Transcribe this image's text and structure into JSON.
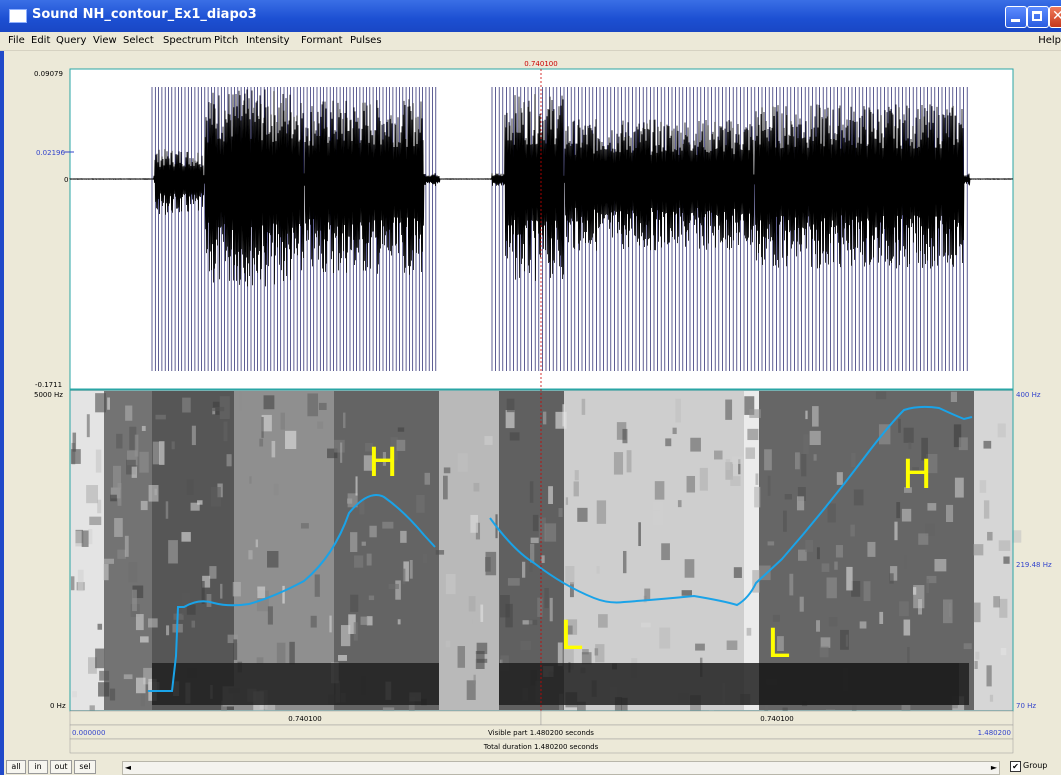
{
  "window": {
    "title": "Sound NH_contour_Ex1_diapo3",
    "buttons": {
      "minimize": "minimize-icon",
      "maximize": "maximize-icon",
      "close": "close-icon",
      "close_glyph": "✕"
    }
  },
  "menu": {
    "items": [
      "File",
      "Edit",
      "Query",
      "View",
      "Select",
      "Spectrum",
      "Pitch",
      "Intensity",
      "Formant",
      "Pulses"
    ],
    "help": "Help"
  },
  "waveform": {
    "y_max_label": "0.09079",
    "y_cursor_label": "0.02196",
    "y_zero_label": "0",
    "y_min_label": "-0.1711"
  },
  "spectrogram": {
    "y_top_label": "5000 Hz",
    "y_bottom_label": "0 Hz",
    "pitch_top_label": "400 Hz",
    "pitch_mid_label": "219.48 Hz",
    "pitch_bottom_label": "70 Hz",
    "annotations": [
      "H",
      "H",
      "L",
      "L"
    ],
    "annotation_color": "#ffff00",
    "pitch_color": "#1aa3e8"
  },
  "cursor": {
    "time_label": "0.740100",
    "color": "#cc0000"
  },
  "timebar": {
    "left_segment": "0.740100",
    "right_segment": "0.740100",
    "start": "0.000000",
    "end": "1.480200",
    "visible_part": "Visible part 1.480200 seconds",
    "total_duration": "Total duration 1.480200 seconds"
  },
  "status": {
    "buttons": [
      "all",
      "in",
      "out",
      "sel"
    ],
    "scroll_left": "◄",
    "scroll_right": "►",
    "group_checked": "✔",
    "group_label": "Group"
  }
}
